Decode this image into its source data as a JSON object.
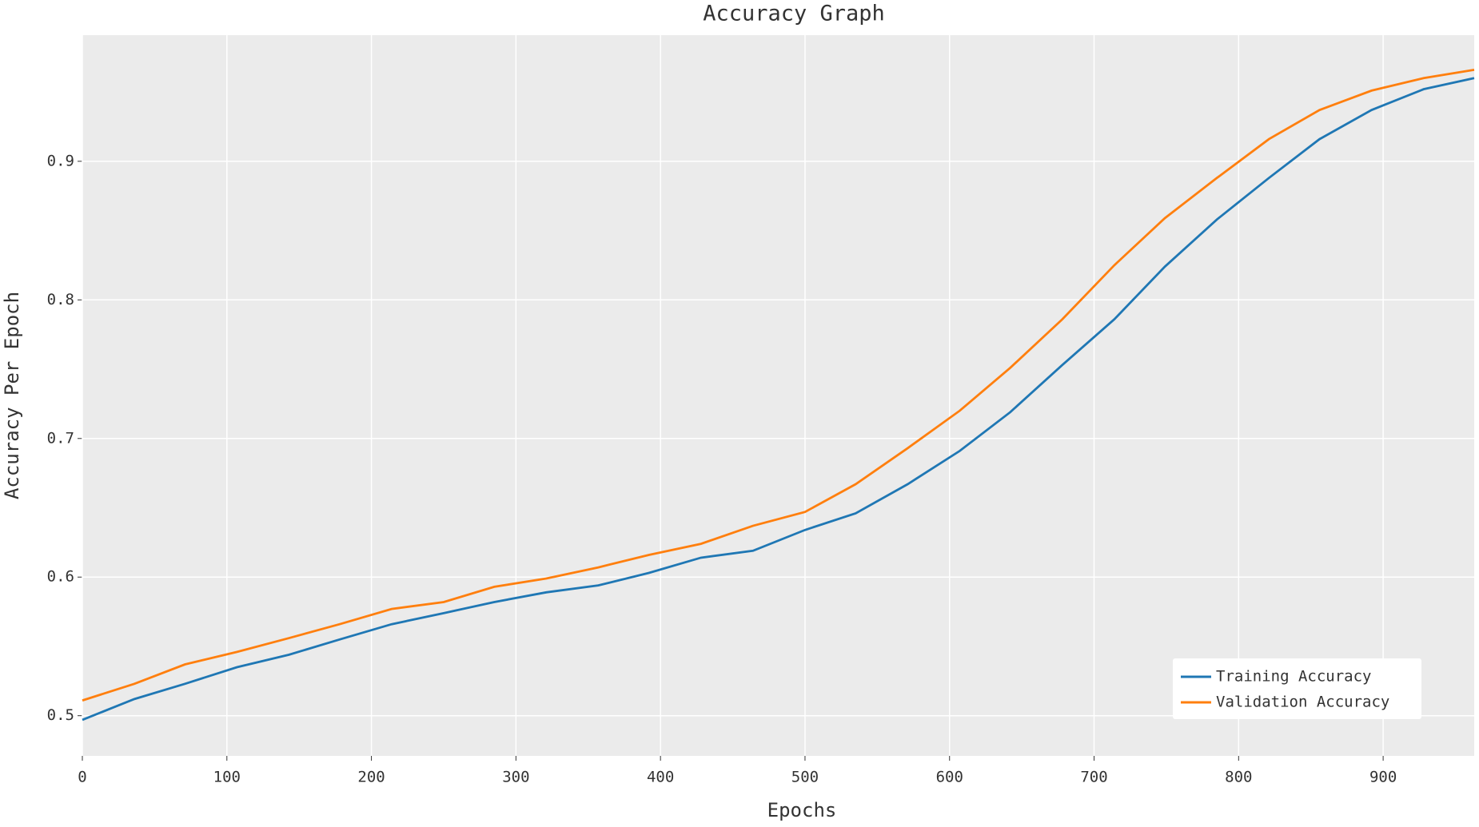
{
  "chart_data": {
    "type": "line",
    "title": "Accuracy Graph",
    "x_label": "Epochs",
    "y_label": "Accuracy Per Epoch",
    "x": [
      0,
      36,
      71,
      107,
      143,
      178,
      214,
      250,
      285,
      321,
      357,
      392,
      428,
      464,
      500,
      535,
      571,
      607,
      642,
      678,
      714,
      749,
      785,
      821,
      856,
      892,
      928,
      963
    ],
    "series": [
      {
        "name": "Training Accuracy",
        "color": "#1f77b4",
        "values": [
          0.497,
          0.512,
          0.523,
          0.535,
          0.544,
          0.555,
          0.566,
          0.574,
          0.582,
          0.589,
          0.594,
          0.603,
          0.614,
          0.619,
          0.634,
          0.646,
          0.667,
          0.691,
          0.719,
          0.753,
          0.786,
          0.824,
          0.858,
          0.888,
          0.916,
          0.937,
          0.952,
          0.96
        ]
      },
      {
        "name": "Validation Accuracy",
        "color": "#ff7f0e",
        "values": [
          0.511,
          0.523,
          0.537,
          0.546,
          0.556,
          0.566,
          0.577,
          0.582,
          0.593,
          0.599,
          0.607,
          0.616,
          0.624,
          0.637,
          0.647,
          0.667,
          0.693,
          0.72,
          0.751,
          0.786,
          0.825,
          0.859,
          0.888,
          0.916,
          0.937,
          0.951,
          0.96,
          0.966
        ]
      }
    ],
    "xlim": [
      0,
      963
    ],
    "ylim": [
      0.471,
      0.991
    ],
    "xticks": [
      0,
      100,
      200,
      300,
      400,
      500,
      600,
      700,
      800,
      900
    ],
    "yticks": [
      0.5,
      0.6,
      0.7,
      0.8,
      0.9
    ],
    "grid": true,
    "legend": "lower right"
  }
}
